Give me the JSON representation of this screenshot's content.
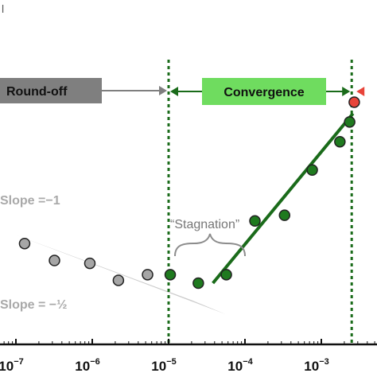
{
  "chart_data": {
    "type": "scatter",
    "title": "",
    "xlabel": "",
    "ylabel": "",
    "x_scale": "log",
    "x_ticks": [
      {
        "value": 1e-07,
        "base": "10",
        "exp": "−7"
      },
      {
        "value": 1e-06,
        "base": "10",
        "exp": "−6"
      },
      {
        "value": 1e-05,
        "base": "10",
        "exp": "−5"
      },
      {
        "value": 0.0001,
        "base": "10",
        "exp": "−4"
      },
      {
        "value": 0.001,
        "base": "10",
        "exp": "−3"
      }
    ],
    "corner_mark": "l",
    "regions": [
      {
        "label": "Round-off",
        "fill": "#7f7f7f",
        "text_color": "#111111"
      },
      {
        "label": "Convergence",
        "fill": "#6fdc5f",
        "text_color": "#111111"
      }
    ],
    "region_boundaries_x": [
      1e-05,
      0.0025
    ],
    "region_line_color": "#1a6b1a",
    "series": [
      {
        "color": "#a6a6a6",
        "points": [
          [
            1.3e-07,
            0.62
          ],
          [
            3.2e-07,
            0.56
          ],
          [
            9.3e-07,
            0.55
          ],
          [
            2.2e-06,
            0.49
          ],
          [
            5.3e-06,
            0.51
          ]
        ]
      },
      {
        "color": "#1f7a1f",
        "points": [
          [
            1.05e-05,
            0.51
          ],
          [
            2.45e-05,
            0.48
          ],
          [
            5.7e-05,
            0.51
          ],
          [
            0.000135,
            0.7
          ],
          [
            0.00033,
            0.72
          ],
          [
            0.00076,
            0.88
          ],
          [
            0.00175,
            0.98
          ],
          [
            0.00235,
            1.05
          ]
        ]
      },
      {
        "color": "#e8443a",
        "points": [
          [
            0.0027,
            1.12
          ]
        ]
      }
    ],
    "fit_line": {
      "color": "#1a6b1a",
      "x": [
        3.8e-05,
        0.0026
      ],
      "y": [
        0.48,
        1.08
      ]
    },
    "wedge": {
      "fill": "#cccccc",
      "apex_x": 1e-07,
      "apex_y": 0.65,
      "upper_end": [
        5.6e-05,
        0.37
      ],
      "lower_end": [
        2e-05,
        0.42
      ]
    },
    "annotations": {
      "slope_top": "Slope =−1",
      "slope_bottom": "Slope = −½",
      "stagnation": "“Stagnation”"
    }
  }
}
